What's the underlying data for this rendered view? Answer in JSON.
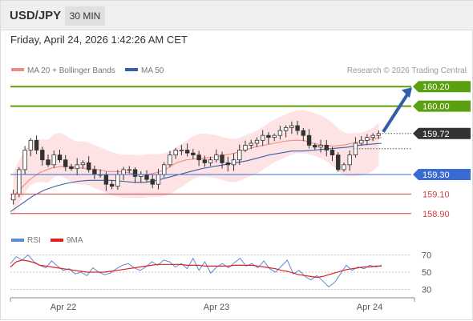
{
  "header": {
    "symbol": "USD/JPY",
    "interval": "30 MIN"
  },
  "datetime": "Friday, April 24, 2026 1:42:26 AM CET",
  "legend": {
    "ma20": {
      "label": "MA 20 + Bollinger Bands",
      "color": "#f28b82"
    },
    "ma50": {
      "label": "MA 50",
      "color": "#3a5ea8"
    },
    "source": "Research © 2026 Trading Central"
  },
  "rsi_legend": {
    "rsi": {
      "label": "RSI",
      "color": "#5b8ad8"
    },
    "ma9": {
      "label": "9MA",
      "color": "#e02020"
    }
  },
  "chart_data": [
    {
      "type": "candlestick",
      "title": "USD/JPY",
      "x_ticks": [
        "Apr 22",
        "Apr 23",
        "Apr 24"
      ],
      "ylim": [
        158.8,
        160.3
      ],
      "levels": [
        {
          "value": 160.2,
          "label": "160.20",
          "kind": "target",
          "color": "#5aa010"
        },
        {
          "value": 160.0,
          "label": "160.00",
          "kind": "target",
          "color": "#5aa010"
        },
        {
          "value": 159.72,
          "label": "159.72",
          "kind": "last",
          "color": "#333333"
        },
        {
          "value": 159.3,
          "label": "159.30",
          "kind": "pivot",
          "color": "#3a6bd0"
        },
        {
          "value": 159.1,
          "label": "159.10",
          "kind": "support",
          "color": "#d04040"
        },
        {
          "value": 158.9,
          "label": "158.90",
          "kind": "support",
          "color": "#d04040"
        }
      ],
      "close_path": [
        159.1,
        159.35,
        159.55,
        159.65,
        159.55,
        159.45,
        159.4,
        159.5,
        159.45,
        159.38,
        159.36,
        159.4,
        159.42,
        159.35,
        159.3,
        159.3,
        159.2,
        159.18,
        159.3,
        159.35,
        159.35,
        159.28,
        159.3,
        159.25,
        159.2,
        159.3,
        159.4,
        159.5,
        159.55,
        159.55,
        159.52,
        159.5,
        159.45,
        159.42,
        159.45,
        159.5,
        159.42,
        159.4,
        159.45,
        159.55,
        159.6,
        159.62,
        159.65,
        159.7,
        159.68,
        159.7,
        159.75,
        159.78,
        159.8,
        159.75,
        159.7,
        159.6,
        159.58,
        159.6,
        159.55,
        159.5,
        159.35,
        159.4,
        159.5,
        159.62,
        159.65,
        159.68,
        159.7,
        159.72
      ],
      "ma20_path": [
        159.05,
        159.15,
        159.25,
        159.32,
        159.36,
        159.38,
        159.38,
        159.37,
        159.36,
        159.35,
        159.33,
        159.33,
        159.32,
        159.3,
        159.3,
        159.32,
        159.36,
        159.42,
        159.45,
        159.46,
        159.47,
        159.48,
        159.5,
        159.52,
        159.55,
        159.58,
        159.6,
        159.62,
        159.64,
        159.65,
        159.65,
        159.62,
        159.6,
        159.59,
        159.6,
        159.62,
        159.64,
        159.66,
        159.68
      ],
      "ma50_path": [
        158.92,
        159.0,
        159.08,
        159.14,
        159.18,
        159.21,
        159.23,
        159.24,
        159.24,
        159.24,
        159.23,
        159.22,
        159.22,
        159.24,
        159.27,
        159.3,
        159.33,
        159.36,
        159.38,
        159.4,
        159.42,
        159.44,
        159.47,
        159.5,
        159.52,
        159.54,
        159.54,
        159.55,
        159.56,
        159.57,
        159.58,
        159.6,
        159.61,
        159.62
      ],
      "target_arrow": {
        "from": 159.72,
        "to": 160.2
      }
    },
    {
      "type": "line",
      "title": "RSI",
      "ylim": [
        25,
        75
      ],
      "y_ticks": [
        70,
        50,
        30
      ],
      "series": [
        {
          "name": "RSI",
          "values": [
            60,
            68,
            64,
            70,
            62,
            58,
            55,
            63,
            57,
            52,
            54,
            48,
            50,
            46,
            55,
            50,
            47,
            49,
            54,
            58,
            60,
            55,
            52,
            56,
            62,
            58,
            64,
            62,
            56,
            60,
            54,
            66,
            52,
            62,
            49,
            56,
            60,
            55,
            61,
            66,
            57,
            60,
            55,
            63,
            54,
            50,
            57,
            64,
            48,
            52,
            45,
            41,
            46,
            40,
            33,
            38,
            48,
            58,
            52,
            56,
            54,
            58,
            56,
            58
          ]
        },
        {
          "name": "9MA",
          "values": [
            56,
            62,
            64,
            63,
            61,
            58,
            57,
            56,
            55,
            54,
            53,
            52,
            51,
            50,
            50,
            50,
            50,
            51,
            52,
            53,
            54,
            55,
            56,
            57,
            58,
            59,
            59,
            59,
            59,
            59,
            58,
            58,
            58,
            57,
            57,
            57,
            57,
            57,
            58,
            58,
            58,
            58,
            57,
            56,
            55,
            54,
            52,
            51,
            49,
            47,
            46,
            45,
            44,
            45,
            47,
            49,
            51,
            53,
            54,
            55,
            56,
            56,
            57,
            57
          ]
        }
      ]
    }
  ]
}
